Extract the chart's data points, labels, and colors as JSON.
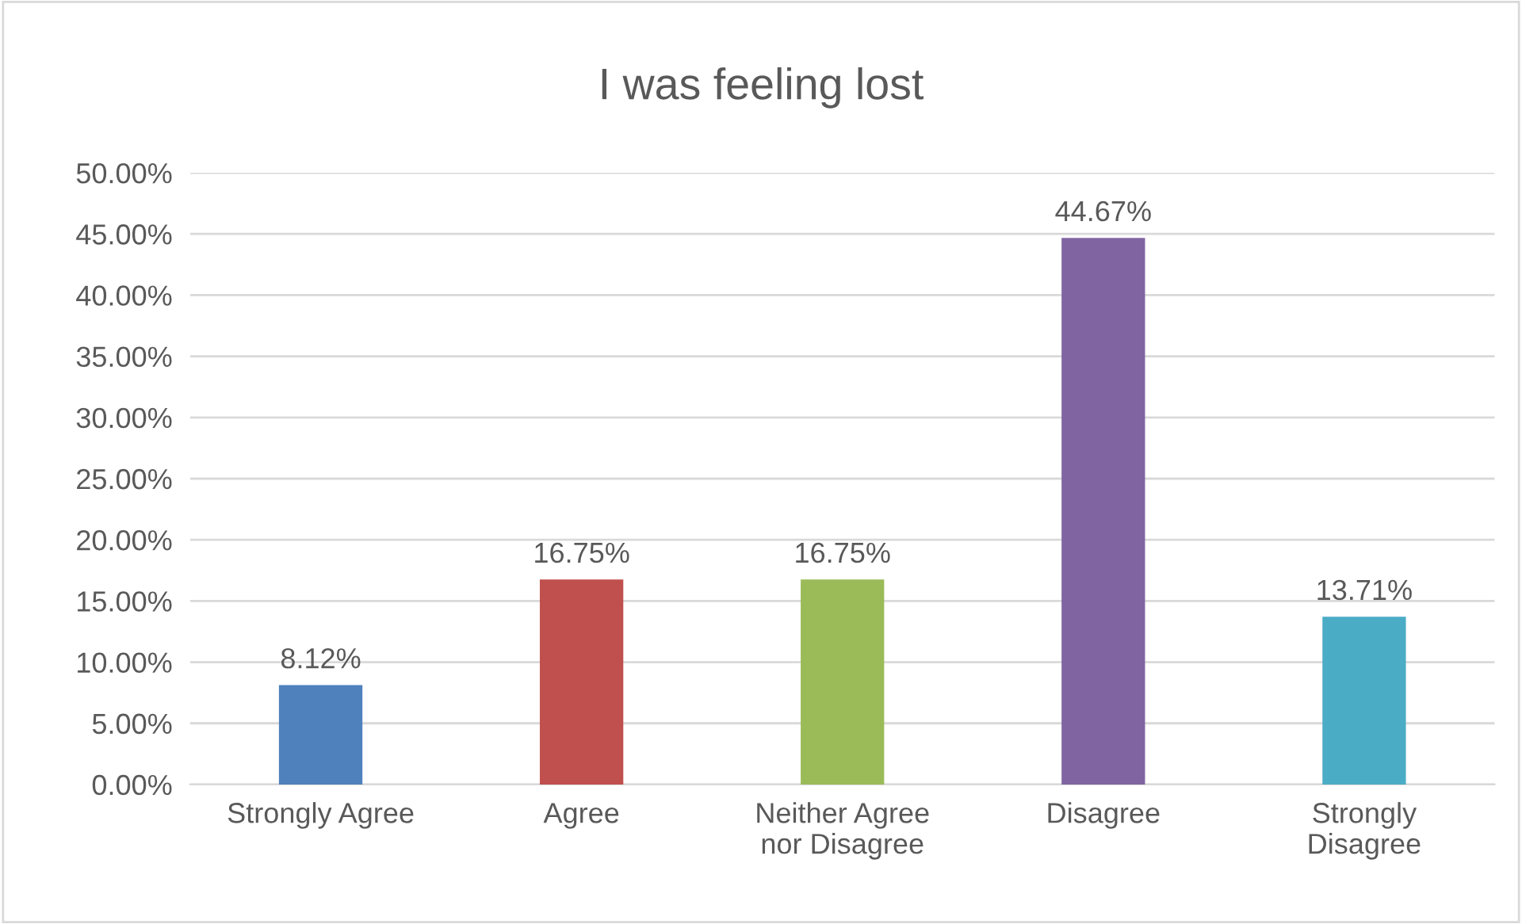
{
  "chart_data": {
    "type": "bar",
    "title": "I was feeling lost",
    "categories": [
      "Strongly Agree",
      "Agree",
      "Neither Agree\nnor Disagree",
      "Disagree",
      "Strongly\nDisagree"
    ],
    "values": [
      8.12,
      16.75,
      16.75,
      44.67,
      13.71
    ],
    "colors": [
      "#4f81bd",
      "#c0504d",
      "#9bbb59",
      "#8064a2",
      "#4bacc6"
    ],
    "value_labels": [
      "8.12%",
      "16.75%",
      "16.75%",
      "44.67%",
      "13.71%"
    ],
    "ylim": [
      0,
      50
    ],
    "yticks": [
      {
        "value": 0,
        "label": "0.00%"
      },
      {
        "value": 5,
        "label": "5.00%"
      },
      {
        "value": 10,
        "label": "10.00%"
      },
      {
        "value": 15,
        "label": "15.00%"
      },
      {
        "value": 20,
        "label": "20.00%"
      },
      {
        "value": 25,
        "label": "25.00%"
      },
      {
        "value": 30,
        "label": "30.00%"
      },
      {
        "value": 35,
        "label": "35.00%"
      },
      {
        "value": 40,
        "label": "40.00%"
      },
      {
        "value": 45,
        "label": "45.00%"
      },
      {
        "value": 50,
        "label": "50.00%"
      }
    ],
    "grid": "y",
    "legend": false
  }
}
